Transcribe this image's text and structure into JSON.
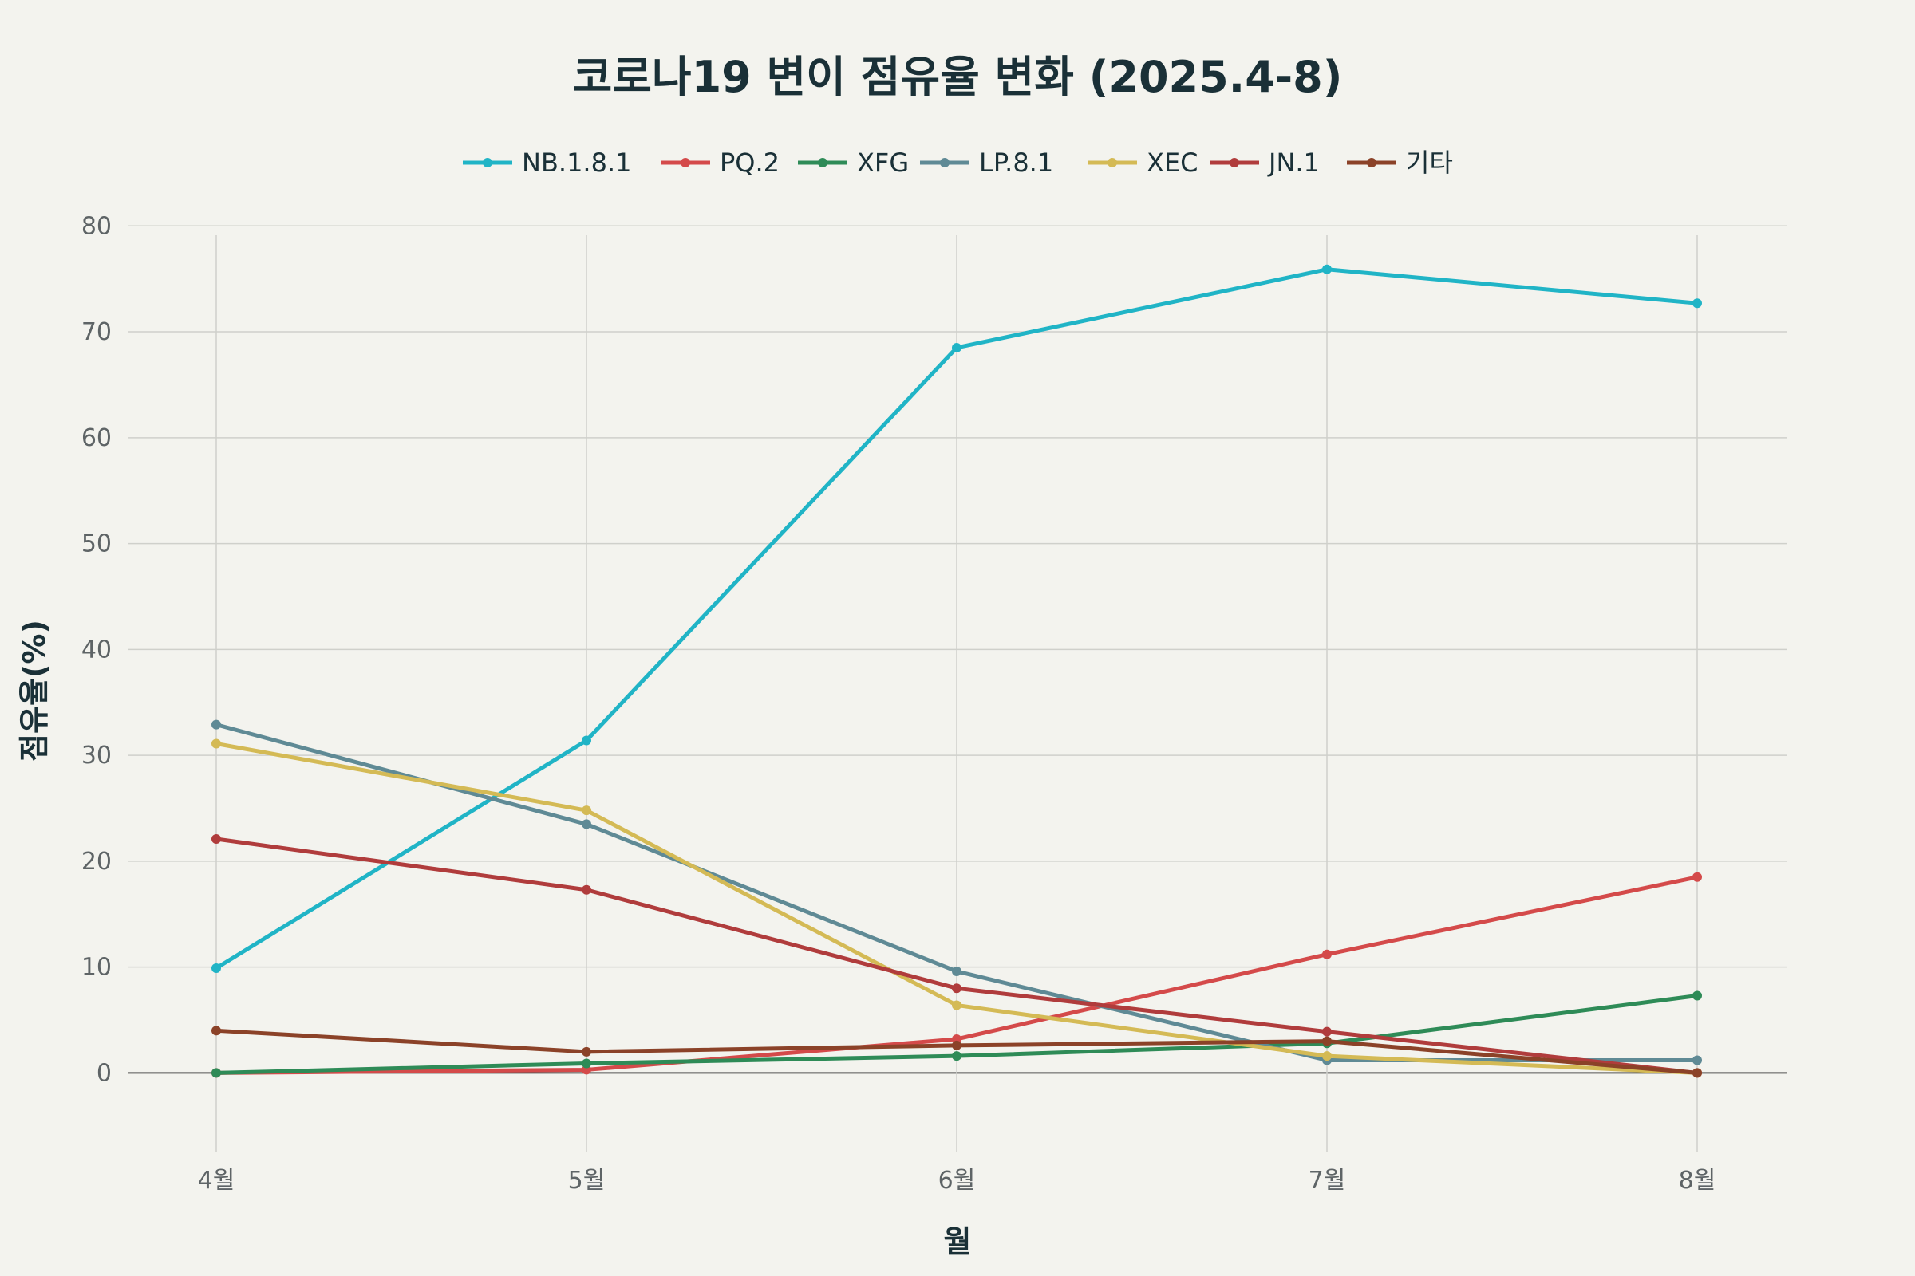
{
  "chart_data": {
    "type": "line",
    "title": "코로나19 변이 점유율 변화 (2025.4-8)",
    "xlabel": "월",
    "ylabel": "점유율(%)",
    "categories": [
      "4월",
      "5월",
      "6월",
      "7월",
      "8월"
    ],
    "ylim": [
      -7.5,
      81
    ],
    "yticks": [
      0,
      10,
      20,
      30,
      40,
      50,
      60,
      70,
      80
    ],
    "grid": true,
    "legend_position": "top",
    "series": [
      {
        "name": "NB.1.8.1",
        "color": "#20b4c6",
        "values": [
          9.9,
          31.4,
          68.5,
          75.9,
          72.7
        ]
      },
      {
        "name": "PQ.2",
        "color": "#d44a4a",
        "values": [
          0.0,
          0.3,
          3.2,
          11.2,
          18.5
        ]
      },
      {
        "name": "XFG",
        "color": "#2e8b57",
        "values": [
          0.0,
          0.9,
          1.6,
          2.8,
          7.3
        ]
      },
      {
        "name": "LP.8.1",
        "color": "#5f8a95",
        "values": [
          32.9,
          23.5,
          9.6,
          1.2,
          1.2
        ]
      },
      {
        "name": "XEC",
        "color": "#d4ba55",
        "values": [
          31.1,
          24.8,
          6.4,
          1.6,
          0.0
        ]
      },
      {
        "name": "JN.1",
        "color": "#b03c3c",
        "values": [
          22.1,
          17.3,
          8.0,
          3.9,
          0.0
        ]
      },
      {
        "name": "기타",
        "color": "#8b4228",
        "values": [
          4.0,
          2.0,
          2.6,
          3.0,
          0.0
        ]
      }
    ]
  }
}
